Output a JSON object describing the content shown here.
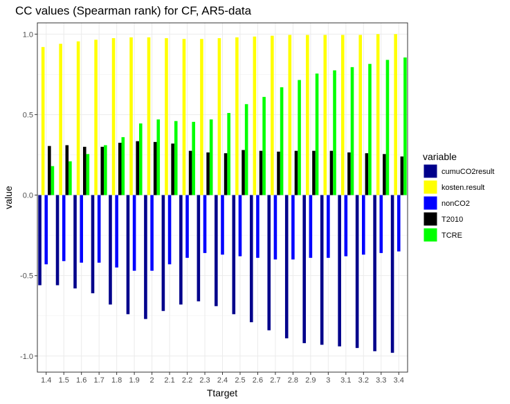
{
  "chart_data": {
    "type": "bar",
    "title": "CC values (Spearman rank) for CF, AR5-data",
    "xlabel": "Ttarget",
    "ylabel": "value",
    "ylim": [
      -1.1,
      1.07
    ],
    "yticks": [
      -1.0,
      -0.5,
      0.0,
      0.5,
      1.0
    ],
    "ytick_labels": [
      "-1.0",
      "-0.5",
      "0.0",
      "0.5",
      "1.0"
    ],
    "grid": true,
    "legend_position": "right",
    "legend_title": "variable",
    "categories": [
      "1.4",
      "1.5",
      "1.6",
      "1.7",
      "1.8",
      "1.9",
      "2",
      "2.1",
      "2.2",
      "2.3",
      "2.4",
      "2.5",
      "2.6",
      "2.7",
      "2.8",
      "2.9",
      "3",
      "3.1",
      "3.2",
      "3.3",
      "3.4"
    ],
    "series": [
      {
        "name": "cumuCO2result",
        "color": "#00008b",
        "values": [
          -0.56,
          -0.56,
          -0.58,
          -0.61,
          -0.68,
          -0.74,
          -0.77,
          -0.72,
          -0.68,
          -0.66,
          -0.69,
          -0.74,
          -0.79,
          -0.84,
          -0.89,
          -0.92,
          -0.93,
          -0.94,
          -0.95,
          -0.97,
          -0.98
        ]
      },
      {
        "name": "kosten.result",
        "color": "#ffff00",
        "values": [
          0.92,
          0.94,
          0.955,
          0.965,
          0.975,
          0.98,
          0.98,
          0.975,
          0.97,
          0.97,
          0.975,
          0.98,
          0.985,
          0.99,
          0.995,
          0.995,
          0.995,
          0.995,
          0.995,
          1.0,
          1.0
        ]
      },
      {
        "name": "nonCO2",
        "color": "#0000ff",
        "values": [
          -0.43,
          -0.41,
          -0.42,
          -0.42,
          -0.45,
          -0.47,
          -0.47,
          -0.43,
          -0.39,
          -0.36,
          -0.37,
          -0.38,
          -0.39,
          -0.4,
          -0.4,
          -0.39,
          -0.39,
          -0.38,
          -0.37,
          -0.36,
          -0.35
        ]
      },
      {
        "name": "T2010",
        "color": "#000000",
        "values": [
          0.305,
          0.31,
          0.3,
          0.3,
          0.325,
          0.335,
          0.33,
          0.32,
          0.275,
          0.265,
          0.26,
          0.28,
          0.275,
          0.27,
          0.275,
          0.275,
          0.275,
          0.265,
          0.26,
          0.255,
          0.24
        ]
      },
      {
        "name": "TCRE",
        "color": "#00ff00",
        "values": [
          0.18,
          0.21,
          0.255,
          0.31,
          0.36,
          0.445,
          0.47,
          0.46,
          0.455,
          0.47,
          0.51,
          0.565,
          0.61,
          0.67,
          0.715,
          0.755,
          0.775,
          0.795,
          0.815,
          0.84,
          0.855
        ]
      }
    ]
  }
}
